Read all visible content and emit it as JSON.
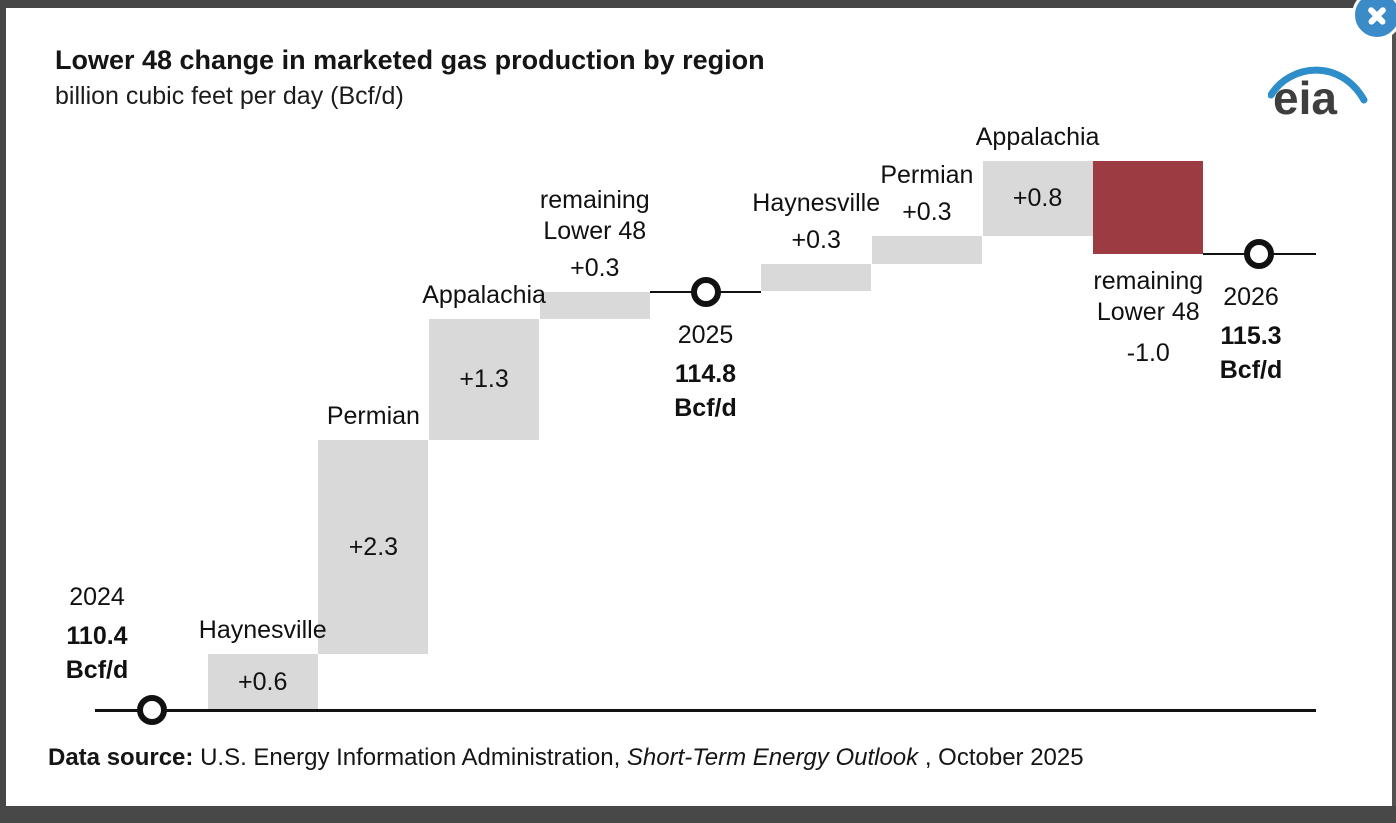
{
  "window": {
    "close_tooltip": "Close"
  },
  "header": {
    "title": "Lower 48 change in marketed gas production by region",
    "subtitle": "billion cubic feet per day (Bcf/d)",
    "logo_text": "eia"
  },
  "chart_data": {
    "type": "waterfall",
    "title": "Lower 48 change in marketed gas production by region",
    "ylabel": "billion cubic feet per day (Bcf/d)",
    "unit": "Bcf/d",
    "baseline_value": 110.4,
    "grid": false,
    "colors": {
      "positive_bar": "#d9d9d9",
      "negative_bar": "#9d3b42",
      "marker": "#111111",
      "axis": "#111111",
      "text": "#111111"
    },
    "steps": [
      {
        "kind": "total",
        "label": "2024",
        "value": 110.4,
        "display_value": "110.4",
        "display_unit": "Bcf/d"
      },
      {
        "kind": "delta",
        "label": "Haynesville",
        "label_lines": [
          "Haynesville"
        ],
        "value": 0.6,
        "display_value": "+0.6"
      },
      {
        "kind": "delta",
        "label": "Permian",
        "label_lines": [
          "Permian"
        ],
        "value": 2.3,
        "display_value": "+2.3"
      },
      {
        "kind": "delta",
        "label": "Appalachia",
        "label_lines": [
          "Appalachia"
        ],
        "value": 1.3,
        "display_value": "+1.3"
      },
      {
        "kind": "delta",
        "label": "remaining Lower 48",
        "label_lines": [
          "remaining",
          "Lower 48"
        ],
        "value": 0.3,
        "display_value": "+0.3"
      },
      {
        "kind": "total",
        "label": "2025",
        "value": 114.8,
        "display_value": "114.8",
        "display_unit": "Bcf/d"
      },
      {
        "kind": "delta",
        "label": "Haynesville",
        "label_lines": [
          "Haynesville"
        ],
        "value": 0.3,
        "display_value": "+0.3"
      },
      {
        "kind": "delta",
        "label": "Permian",
        "label_lines": [
          "Permian"
        ],
        "value": 0.3,
        "display_value": "+0.3"
      },
      {
        "kind": "delta",
        "label": "Appalachia",
        "label_lines": [
          "Appalachia"
        ],
        "value": 0.8,
        "display_value": "+0.8"
      },
      {
        "kind": "delta",
        "label": "remaining Lower 48",
        "label_lines": [
          "remaining",
          "Lower 48"
        ],
        "value": -1.0,
        "display_value": "-1.0"
      },
      {
        "kind": "total",
        "label": "2026",
        "value": 115.3,
        "display_value": "115.3",
        "display_unit": "Bcf/d"
      }
    ]
  },
  "footer": {
    "source_prefix": "Data source: ",
    "source_body": "U.S. Energy Information Administration, ",
    "source_italic": "Short-Term Energy Outlook",
    "source_suffix": " , October 2025"
  }
}
